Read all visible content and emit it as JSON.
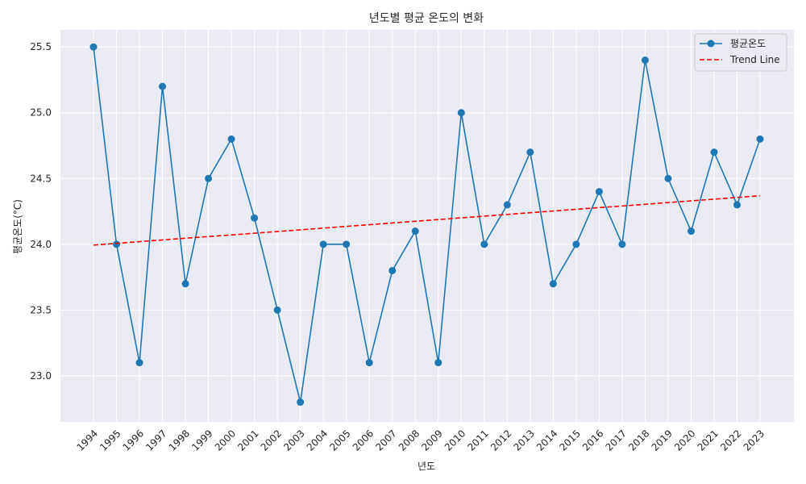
{
  "chart_data": {
    "type": "line",
    "title": "년도별 평균 온도의 변화",
    "xlabel": "년도",
    "ylabel": "평균온도(°C)",
    "x": [
      1994,
      1995,
      1996,
      1997,
      1998,
      1999,
      2000,
      2001,
      2002,
      2003,
      2004,
      2005,
      2006,
      2007,
      2008,
      2009,
      2010,
      2011,
      2012,
      2013,
      2014,
      2015,
      2016,
      2017,
      2018,
      2019,
      2020,
      2021,
      2022,
      2023
    ],
    "series": [
      {
        "name": "평균온도",
        "style": "solid-marker",
        "color": "#1f77b4",
        "values": [
          25.5,
          24.0,
          23.1,
          25.2,
          23.7,
          24.5,
          24.8,
          24.2,
          23.5,
          22.8,
          24.0,
          24.0,
          23.1,
          23.8,
          24.1,
          23.1,
          25.0,
          24.0,
          24.3,
          24.7,
          23.7,
          24.0,
          24.4,
          24.0,
          25.4,
          24.5,
          24.1,
          24.7,
          24.3,
          24.8
        ]
      },
      {
        "name": "Trend Line",
        "style": "dashed",
        "color": "#ff0000",
        "values": [
          23.994,
          24.007,
          24.02,
          24.033,
          24.046,
          24.059,
          24.071,
          24.084,
          24.097,
          24.11,
          24.123,
          24.136,
          24.149,
          24.162,
          24.175,
          24.188,
          24.201,
          24.214,
          24.227,
          24.24,
          24.253,
          24.266,
          24.279,
          24.291,
          24.304,
          24.317,
          24.33,
          24.343,
          24.356,
          24.369
        ]
      }
    ],
    "yticks": [
      "23.0",
      "23.5",
      "24.0",
      "24.5",
      "25.0",
      "25.5"
    ],
    "ylim": [
      22.65,
      25.63
    ],
    "grid": true,
    "legend": "top-right",
    "background": "#eaeaf2"
  }
}
